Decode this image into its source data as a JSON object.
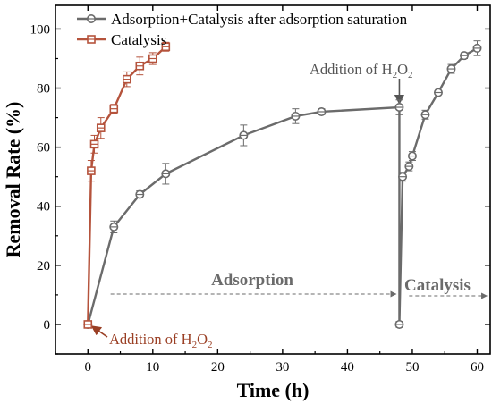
{
  "chart_data": {
    "type": "line",
    "xlabel": "Time (h)",
    "ylabel": "Removal Rate (%)",
    "xlim": [
      -5,
      62
    ],
    "ylim": [
      -10,
      108
    ],
    "xticks": [
      0,
      10,
      20,
      30,
      40,
      50,
      60
    ],
    "yticks": [
      0,
      20,
      40,
      60,
      80,
      100
    ],
    "grid": false,
    "legend_position": "top-left",
    "series": [
      {
        "name": "Adsorption+Catalysis after adsorption saturation",
        "color": "#6b6b6b",
        "marker": "circle",
        "x": [
          0,
          4,
          8,
          12,
          24,
          32,
          36,
          48,
          48,
          48.5,
          49.5,
          50,
          52,
          54,
          56,
          58,
          60
        ],
        "y": [
          0,
          33,
          44,
          51,
          64,
          70.5,
          72,
          73.5,
          0,
          50,
          53.5,
          57,
          71,
          78.5,
          86.5,
          91,
          93.5
        ],
        "err": [
          0,
          2,
          1.2,
          3.5,
          3.5,
          2.5,
          1,
          2.5,
          1,
          1.5,
          1.5,
          1.5,
          1.5,
          1.5,
          1.5,
          1,
          2.5
        ]
      },
      {
        "name": "Catalysis",
        "color": "#b5533c",
        "marker": "square",
        "x": [
          0,
          0.5,
          1,
          2,
          4,
          6,
          8,
          10,
          12
        ],
        "y": [
          0,
          52,
          61,
          66.5,
          73,
          83,
          87.5,
          90,
          94
        ],
        "err": [
          0,
          3.5,
          3,
          3.5,
          1.5,
          2.5,
          3,
          2,
          1.5
        ]
      }
    ],
    "annotations": [
      {
        "id": "adsorption-label",
        "text": "Adsorption"
      },
      {
        "id": "catalysis-label",
        "text": "Catalysis"
      },
      {
        "id": "h2o2-top-pre",
        "text": "Addition of H",
        "sub": "2",
        "mid": "O",
        "sub2": "2"
      },
      {
        "id": "h2o2-bottom-pre",
        "text": "Addition of H",
        "sub": "2",
        "mid": "O",
        "sub2": "2"
      }
    ]
  }
}
